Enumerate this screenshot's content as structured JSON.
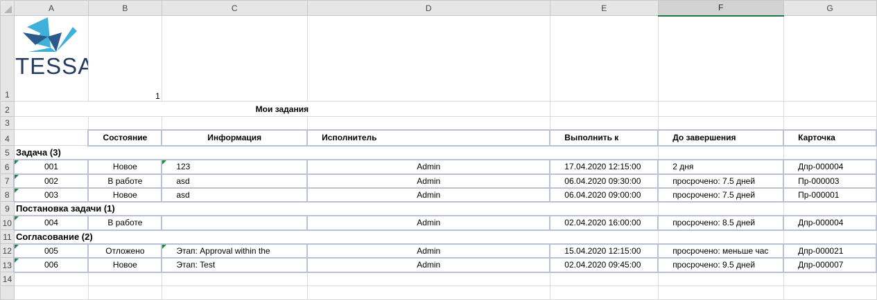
{
  "columns": [
    "A",
    "B",
    "C",
    "D",
    "E",
    "F",
    "G"
  ],
  "selected_column": "F",
  "row_numbers": [
    "1",
    "2",
    "3",
    "4",
    "5",
    "6",
    "7",
    "8",
    "9",
    "10",
    "11",
    "12",
    "13",
    "14"
  ],
  "logo": {
    "text": "TESSA",
    "colors": {
      "light": "#3fb0d9",
      "dark": "#2c5a8a",
      "text": "#243a5e"
    }
  },
  "cell_B1": "1",
  "title": "Мои задания",
  "headers": [
    "Состояние",
    "Информация",
    "Исполнитель",
    "Выполнить к",
    "До завершения",
    "Карточка"
  ],
  "groups": [
    {
      "label": "Задача (3)",
      "rows": [
        {
          "num": "001",
          "state": "Новое",
          "info": "123",
          "executor": "Admin",
          "due": "17.04.2020 12:15:00",
          "left": "2 дня",
          "card": "Дпр-000004"
        },
        {
          "num": "002",
          "state": "В работе",
          "info": "asd",
          "executor": "Admin",
          "due": "06.04.2020 09:30:00",
          "left": "просрочено: 7.5 дней",
          "card": "Пр-000003"
        },
        {
          "num": "003",
          "state": "Новое",
          "info": "asd",
          "executor": "Admin",
          "due": "06.04.2020 09:00:00",
          "left": "просрочено: 7.5 дней",
          "card": "Пр-000001"
        }
      ]
    },
    {
      "label": "Постановка задачи (1)",
      "rows": [
        {
          "num": "004",
          "state": "В работе",
          "info": "",
          "executor": "Admin",
          "due": "02.04.2020 16:00:00",
          "left": "просрочено: 8.5 дней",
          "card": "Дпр-000004"
        }
      ]
    },
    {
      "label": "Согласование (2)",
      "rows": [
        {
          "num": "005",
          "state": "Отложено",
          "info": "Этап: Approval within the",
          "executor": "Admin",
          "due": "15.04.2020 12:15:00",
          "left": "просрочено: меньше час",
          "card": "Дпр-000021"
        },
        {
          "num": "006",
          "state": "Новое",
          "info": "Этап: Test",
          "executor": "Admin",
          "due": "02.04.2020 09:45:00",
          "left": "просрочено: 9.5 дней",
          "card": "Дпр-000007"
        }
      ]
    }
  ],
  "colors": {
    "grid": "#dadada",
    "table_border": "#b8c1d8",
    "header_bg": "#e6e6e6",
    "selected_accent": "#217346",
    "error_flag": "#1e8c3a"
  }
}
